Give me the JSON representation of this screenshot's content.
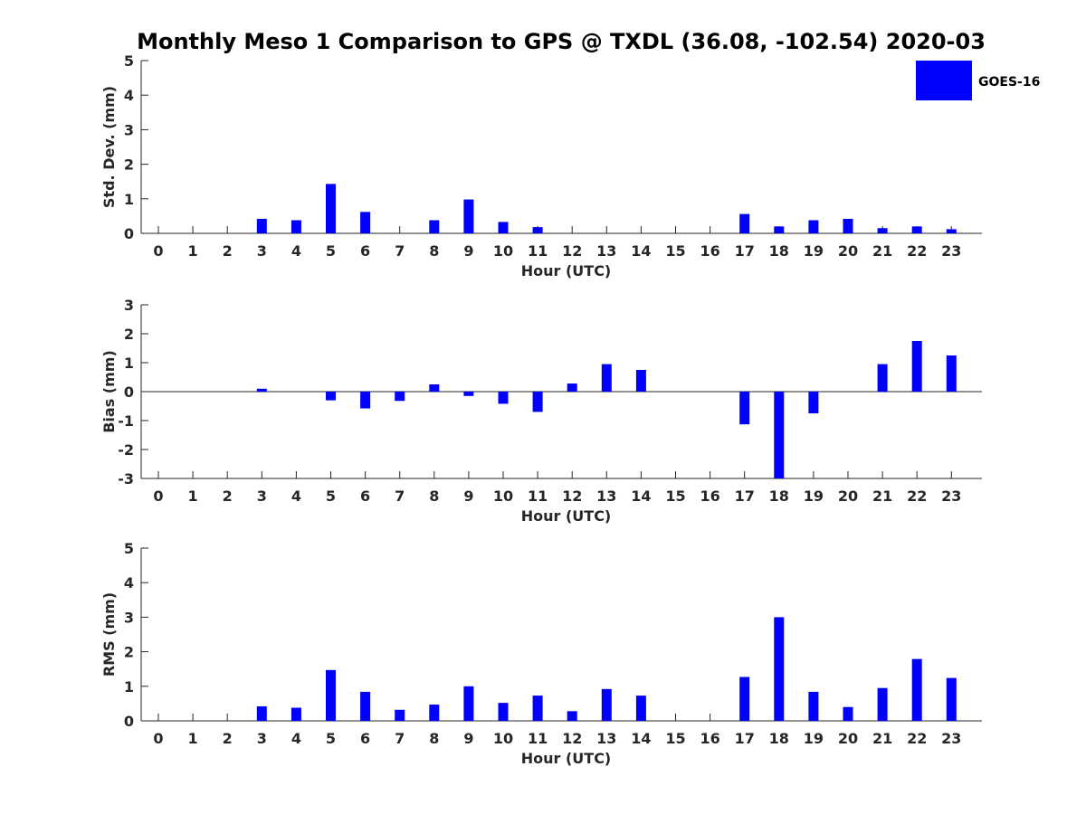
{
  "chart_data": {
    "type": "bar",
    "title": "Monthly Meso 1 Comparison to GPS @ TXDL (36.08, -102.54) 2020-03",
    "legend": {
      "label": "GOES-16",
      "color": "#0000ff",
      "placement": "top-right"
    },
    "bar_color": "#0000ff",
    "panels": [
      {
        "name": "std-dev",
        "xlabel": "Hour (UTC)",
        "ylabel": "Std. Dev. (mm)",
        "ylim": [
          0,
          5
        ],
        "yticks": [
          0,
          1,
          2,
          3,
          4,
          5
        ],
        "categories": [
          0,
          1,
          2,
          3,
          4,
          5,
          6,
          7,
          8,
          9,
          10,
          11,
          12,
          13,
          14,
          15,
          16,
          17,
          18,
          19,
          20,
          21,
          22,
          23
        ],
        "values": [
          0,
          0,
          0,
          0.42,
          0.38,
          1.43,
          0.62,
          0,
          0.38,
          0.98,
          0.33,
          0.18,
          0,
          0,
          0,
          0,
          0,
          0.56,
          0.2,
          0.38,
          0.42,
          0.15,
          0.2,
          0.12
        ],
        "baseline_y": 0
      },
      {
        "name": "bias",
        "xlabel": "Hour (UTC)",
        "ylabel": "Bias (mm)",
        "ylim": [
          -3,
          3
        ],
        "yticks": [
          -3,
          -2,
          -1,
          0,
          1,
          2,
          3
        ],
        "categories": [
          0,
          1,
          2,
          3,
          4,
          5,
          6,
          7,
          8,
          9,
          10,
          11,
          12,
          13,
          14,
          15,
          16,
          17,
          18,
          19,
          20,
          21,
          22,
          23
        ],
        "values": [
          0,
          0,
          0,
          0.1,
          0,
          -0.3,
          -0.58,
          -0.32,
          0.25,
          -0.15,
          -0.42,
          -0.7,
          0.28,
          0.95,
          0.75,
          0,
          0,
          -1.13,
          -3.0,
          -0.75,
          0,
          0.95,
          1.75,
          1.25
        ],
        "baseline_y": 0
      },
      {
        "name": "rms",
        "xlabel": "Hour (UTC)",
        "ylabel": "RMS (mm)",
        "ylim": [
          0,
          5
        ],
        "yticks": [
          0,
          1,
          2,
          3,
          4,
          5
        ],
        "categories": [
          0,
          1,
          2,
          3,
          4,
          5,
          6,
          7,
          8,
          9,
          10,
          11,
          12,
          13,
          14,
          15,
          16,
          17,
          18,
          19,
          20,
          21,
          22,
          23
        ],
        "values": [
          0,
          0,
          0,
          0.42,
          0.38,
          1.47,
          0.84,
          0.32,
          0.47,
          1.0,
          0.52,
          0.73,
          0.28,
          0.92,
          0.73,
          0,
          0,
          1.27,
          3.0,
          0.84,
          0.4,
          0.95,
          1.79,
          1.24
        ],
        "baseline_y": 0
      }
    ]
  }
}
